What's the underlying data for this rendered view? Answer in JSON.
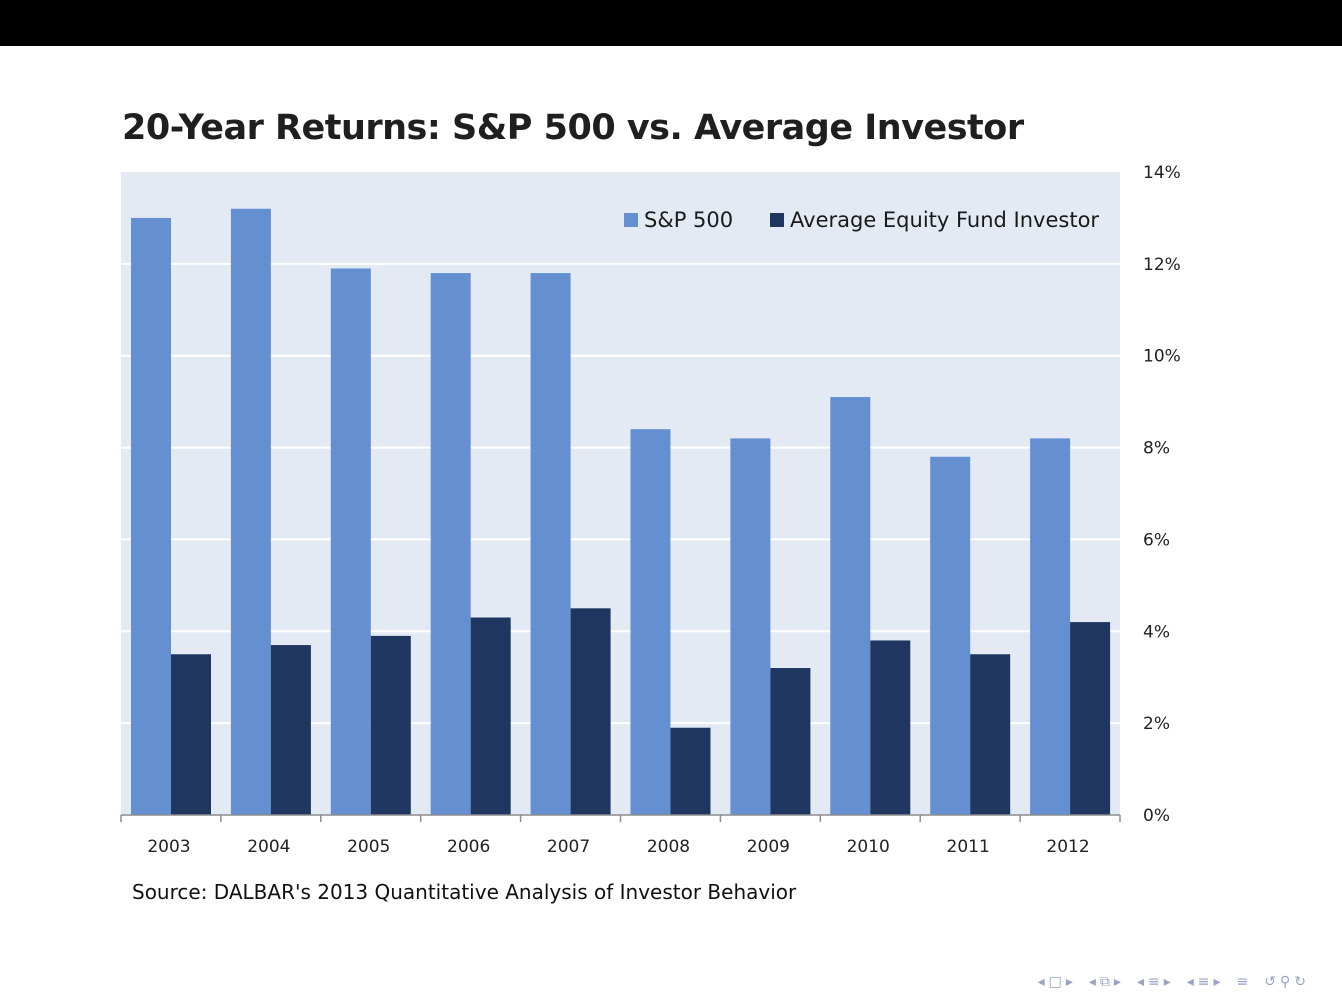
{
  "title": "20-Year Returns: S&P 500 vs. Average Investor",
  "source": "Source: DALBAR's 2013  Quantitative Analysis of Investor Behavior",
  "colors": {
    "plot_background": "#e4eaf4",
    "sp500": "#6490d1",
    "investor": "#1f3660",
    "gridline": "#ffffff",
    "top_bar": "#000000"
  },
  "nav_icons": [
    "nav-left-arrow",
    "frame-icon",
    "nav-right-arrow",
    "subsection-icon",
    "section-icon",
    "align-icon",
    "search-icon"
  ],
  "chart_data": {
    "type": "bar",
    "title": "20-Year Returns: S&P 500 vs. Average Investor",
    "categories": [
      "2003",
      "2004",
      "2005",
      "2006",
      "2007",
      "2008",
      "2009",
      "2010",
      "2011",
      "2012"
    ],
    "series": [
      {
        "name": "S&P 500",
        "color": "#6490d1",
        "values": [
          13.0,
          13.2,
          11.9,
          11.8,
          11.8,
          8.4,
          8.2,
          9.1,
          7.8,
          8.2
        ]
      },
      {
        "name": "Average Equity Fund Investor",
        "color": "#1f3660",
        "values": [
          3.5,
          3.7,
          3.9,
          4.3,
          4.5,
          1.9,
          3.2,
          3.8,
          3.5,
          4.2
        ]
      }
    ],
    "ylim": [
      0,
      14
    ],
    "yticks": [
      "0%",
      "2%",
      "4%",
      "6%",
      "8%",
      "10%",
      "12%",
      "14%"
    ],
    "y_axis_side": "right",
    "grid": true,
    "legend_position": "top-right"
  }
}
